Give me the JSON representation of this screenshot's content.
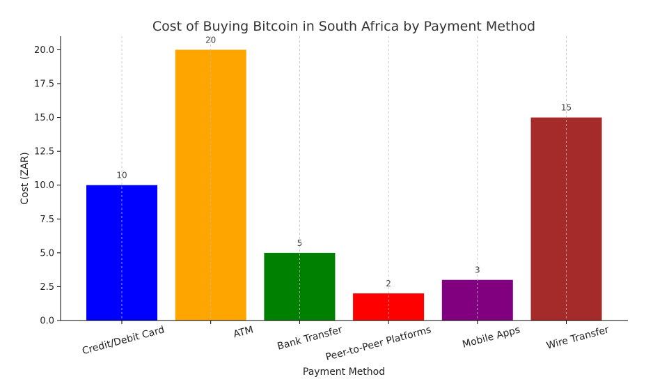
{
  "chart_data": {
    "type": "bar",
    "title": "Cost of Buying Bitcoin in South Africa by Payment Method",
    "xlabel": "Payment Method",
    "ylabel": "Cost (ZAR)",
    "categories": [
      "Credit/Debit Card",
      "ATM",
      "Bank Transfer",
      "Peer-to-Peer Platforms",
      "Mobile Apps",
      "Wire Transfer"
    ],
    "values": [
      10,
      20,
      5,
      2,
      3,
      15
    ],
    "data_labels": [
      "10",
      "20",
      "5",
      "2",
      "3",
      "15"
    ],
    "colors": [
      "#0000ff",
      "#ffa500",
      "#008000",
      "#ff0000",
      "#800080",
      "#a52a2a"
    ],
    "ylim": [
      0,
      21
    ],
    "yticks": [
      0,
      2.5,
      5,
      7.5,
      10,
      12.5,
      15,
      17.5,
      20
    ],
    "ytick_labels": [
      "0.0",
      "2.5",
      "5.0",
      "7.5",
      "10.0",
      "12.5",
      "15.0",
      "17.5",
      "20.0"
    ],
    "grid": "vertical dashed",
    "legend": "none"
  }
}
